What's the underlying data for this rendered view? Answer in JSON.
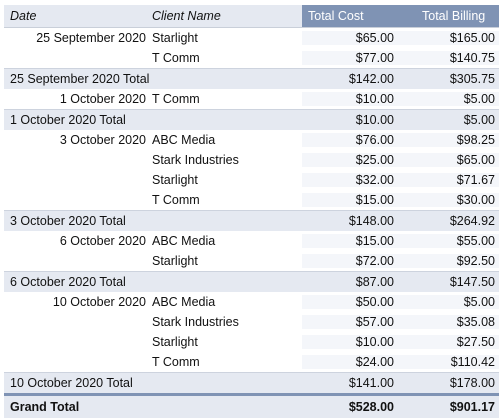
{
  "headers": {
    "date": "Date",
    "client": "Client Name",
    "cost": "Total Cost",
    "billing": "Total Billing"
  },
  "group1": {
    "date": "25 September 2020",
    "rows": [
      {
        "client": "Starlight",
        "cost": "$65.00",
        "billing": "$165.00"
      },
      {
        "client": "T Comm",
        "cost": "$77.00",
        "billing": "$140.75"
      }
    ],
    "total": {
      "label": "25 September 2020 Total",
      "cost": "$142.00",
      "billing": "$305.75"
    }
  },
  "group2": {
    "date": "1 October 2020",
    "rows": [
      {
        "client": "T Comm",
        "cost": "$10.00",
        "billing": "$5.00"
      }
    ],
    "total": {
      "label": "1 October 2020 Total",
      "cost": "$10.00",
      "billing": "$5.00"
    }
  },
  "group3": {
    "date": "3 October 2020",
    "rows": [
      {
        "client": "ABC Media",
        "cost": "$76.00",
        "billing": "$98.25"
      },
      {
        "client": "Stark Industries",
        "cost": "$25.00",
        "billing": "$65.00"
      },
      {
        "client": "Starlight",
        "cost": "$32.00",
        "billing": "$71.67"
      },
      {
        "client": "T Comm",
        "cost": "$15.00",
        "billing": "$30.00"
      }
    ],
    "total": {
      "label": "3 October 2020 Total",
      "cost": "$148.00",
      "billing": "$264.92"
    }
  },
  "group4": {
    "date": "6 October 2020",
    "rows": [
      {
        "client": "ABC Media",
        "cost": "$15.00",
        "billing": "$55.00"
      },
      {
        "client": "Starlight",
        "cost": "$72.00",
        "billing": "$92.50"
      }
    ],
    "total": {
      "label": "6 October 2020 Total",
      "cost": "$87.00",
      "billing": "$147.50"
    }
  },
  "group5": {
    "date": "10 October 2020",
    "rows": [
      {
        "client": "ABC Media",
        "cost": "$50.00",
        "billing": "$5.00"
      },
      {
        "client": "Stark Industries",
        "cost": "$57.00",
        "billing": "$35.08"
      },
      {
        "client": "Starlight",
        "cost": "$10.00",
        "billing": "$27.50"
      },
      {
        "client": "T Comm",
        "cost": "$24.00",
        "billing": "$110.42"
      }
    ],
    "total": {
      "label": "10 October 2020 Total",
      "cost": "$141.00",
      "billing": "$178.00"
    }
  },
  "grand_total": {
    "label": "Grand Total",
    "cost": "$528.00",
    "billing": "$901.17"
  }
}
